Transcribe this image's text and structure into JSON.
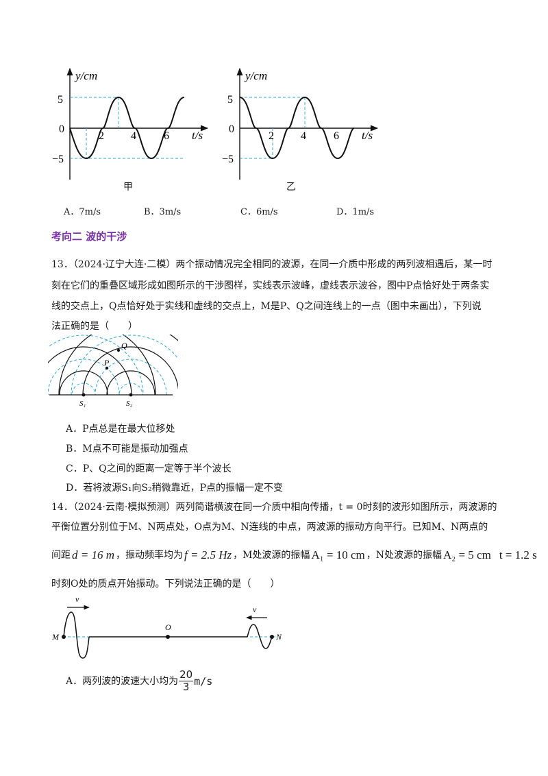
{
  "fig12": {
    "left_caption": "甲",
    "right_caption": "乙",
    "y_axis": "y/cm",
    "t_axis": "t/s",
    "y_ticks": [
      "5",
      "0",
      "−5"
    ],
    "t_ticks": [
      "2",
      "4",
      "6"
    ]
  },
  "q12_options": [
    "A．7m/s",
    "B．3m/s",
    "C．6m/s",
    "D．1m/s"
  ],
  "section_title": "考向二  波的干涉",
  "q13": {
    "lines": [
      "13．（2024·辽宁大连·二模）两个振动情况完全相同的波源，在同一介质中形成的两列波相遇后，某一时",
      "刻在它们的重叠区域形成如图所示的干涉图样，实线表示波峰，虚线表示波谷，图中P点恰好处于两条实",
      "线的交点上，Q点恰好处于实线和虚线的交点上，M是P、Q之间连线上的一点（图中未画出），下列说",
      "法正确的是（　　）"
    ],
    "figure_labels": {
      "Q": "Q",
      "P": "P",
      "S1": "S₁",
      "S2": "S₂"
    },
    "options": [
      "A．P点总是在最大位移处",
      "B．M点不可能是振动加强点",
      "C．P、Q之间的距离一定等于半个波长",
      "D．若将波源S₁向S₂稍微靠近，P点的振幅一定不变"
    ]
  },
  "q14": {
    "line1": "14．（2024·云南·模拟预测）两列简谐横波在同一介质中相向传播，t = 0时刻的波形如图所示，两波源的",
    "line2": "平衡位置分别位于M、N两点处，O点为M、N连线的中点，两波源的振动方向平行。已知M、N两点的",
    "line3_prefix": "间距",
    "d": "d = 16 m",
    "freq_text": "，振动频率均为",
    "f": "f = 2.5 Hz",
    "m_text": "，M处波源的振幅",
    "a1": "A₁ = 10 cm",
    "n_text": "，N处波源的振幅",
    "a2": "A₂ = 5 cm",
    "t_val": "t = 1.2 s",
    "line4": "时刻O处的质点开始振动。下列说法正确的是（　　）",
    "figure_labels": {
      "M": "M",
      "O": "O",
      "N": "N",
      "v_left": "v",
      "v_right": "v"
    },
    "option_a_prefix": "A．两列波的波速大小均为",
    "option_a_num": "20",
    "option_a_den": "3",
    "option_a_unit": "m/s"
  }
}
